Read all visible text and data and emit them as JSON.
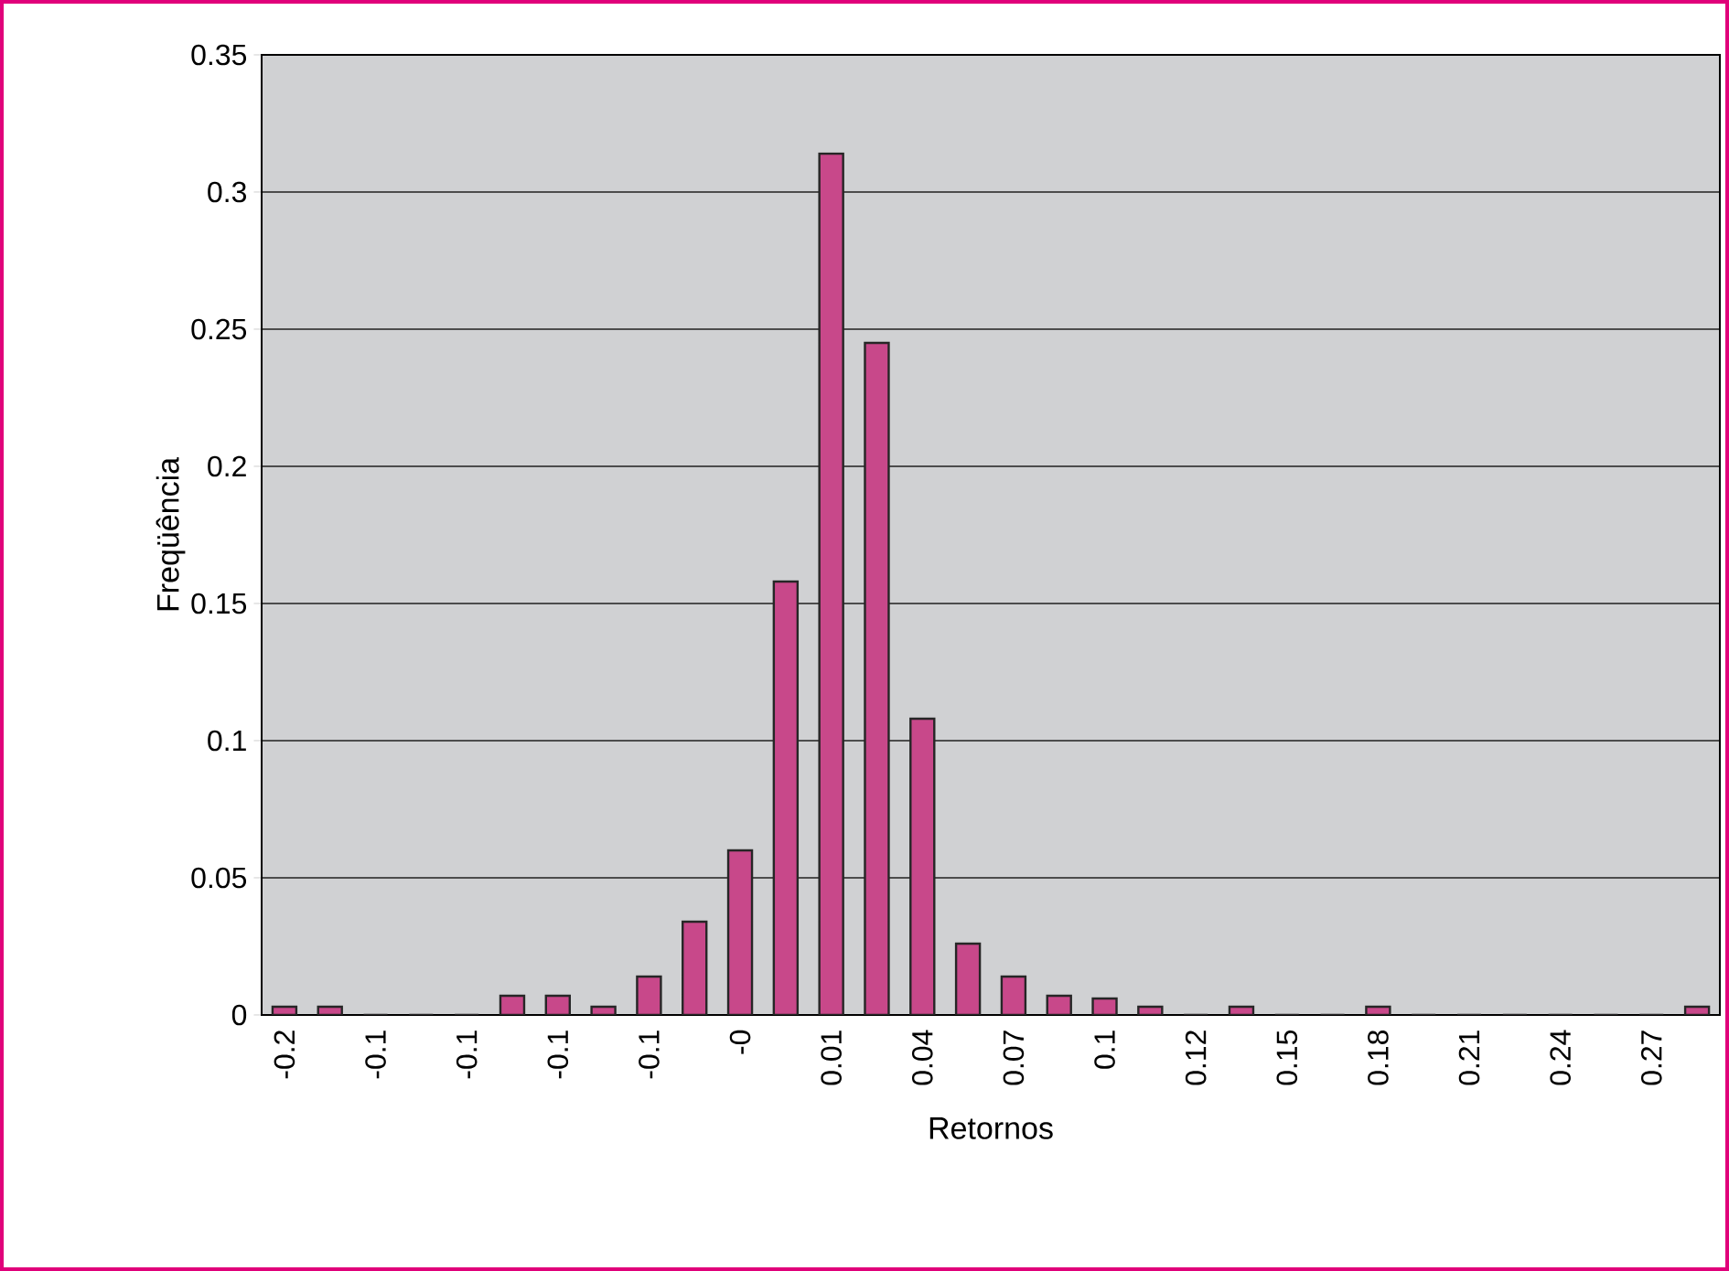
{
  "chart_data": {
    "type": "bar",
    "xlabel": "Retornos",
    "ylabel": "Freqüência",
    "categories": [
      "-0.2",
      null,
      "-0.1",
      null,
      "-0.1",
      null,
      "-0.1",
      null,
      "-0.1",
      null,
      "-0",
      null,
      "0.01",
      null,
      "0.04",
      null,
      "0.07",
      null,
      "0.1",
      null,
      "0.12",
      null,
      "0.15",
      null,
      "0.18",
      null,
      "0.21",
      null,
      "0.24",
      null,
      "0.27",
      null
    ],
    "values": [
      0.003,
      0.003,
      0,
      0,
      0,
      0.007,
      0.007,
      0.003,
      0.014,
      0.034,
      0.06,
      0.158,
      0.314,
      0.245,
      0.108,
      0.026,
      0.014,
      0.007,
      0.006,
      0.003,
      0,
      0.003,
      0,
      0,
      0.003,
      0,
      0,
      0,
      0,
      0,
      0,
      0.003
    ],
    "color": "#c8488a",
    "ylim": [
      0,
      0.35
    ],
    "yticks": [
      0,
      0.05,
      0.1,
      0.15,
      0.2,
      0.25,
      0.3,
      0.35
    ],
    "grid": "y"
  }
}
